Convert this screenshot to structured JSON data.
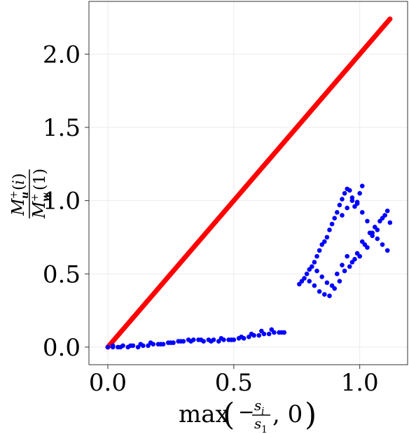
{
  "chart_data": {
    "type": "scatter",
    "title": "",
    "xlabel": "max(−s_i/s_1, 0)",
    "ylabel": "M⁺_u(i) / M⁺_w(1)",
    "xlim": [
      -0.075,
      1.19
    ],
    "ylim": [
      -0.12,
      2.36
    ],
    "grid": true,
    "x_ticks": [
      {
        "value": 0.0,
        "label": "0.0"
      },
      {
        "value": 0.5,
        "label": "0.5"
      },
      {
        "value": 1.0,
        "label": "1.0"
      }
    ],
    "y_ticks": [
      {
        "value": 0.0,
        "label": "0.0"
      },
      {
        "value": 0.5,
        "label": "0.5"
      },
      {
        "value": 1.0,
        "label": "1.0"
      },
      {
        "value": 1.5,
        "label": "1.5"
      },
      {
        "value": 2.0,
        "label": "2.0"
      }
    ],
    "series": [
      {
        "color": "#ff0000",
        "description": "dense points along y = 2x",
        "x": [
          0.0,
          0.05,
          0.1,
          0.15,
          0.2,
          0.25,
          0.3,
          0.35,
          0.4,
          0.45,
          0.5,
          0.55,
          0.6,
          0.65,
          0.7,
          0.75,
          0.8,
          0.85,
          0.9,
          0.95,
          1.0,
          1.05,
          1.1,
          1.12
        ],
        "y": [
          0.0,
          0.1,
          0.2,
          0.3,
          0.4,
          0.5,
          0.6,
          0.7,
          0.8,
          0.9,
          1.0,
          1.1,
          1.2,
          1.3,
          1.4,
          1.5,
          1.6,
          1.7,
          1.8,
          1.9,
          2.0,
          2.1,
          2.2,
          2.24
        ]
      },
      {
        "color": "#0000ff",
        "x": [
          0.0,
          0.02,
          0.04,
          0.06,
          0.08,
          0.1,
          0.12,
          0.14,
          0.16,
          0.18,
          0.2,
          0.22,
          0.24,
          0.26,
          0.28,
          0.3,
          0.32,
          0.34,
          0.36,
          0.38,
          0.4,
          0.42,
          0.44,
          0.46,
          0.48,
          0.5,
          0.52,
          0.54,
          0.56,
          0.58,
          0.6,
          0.62,
          0.64,
          0.66,
          0.68,
          0.7,
          0.02,
          0.05,
          0.09,
          0.13,
          0.17,
          0.21,
          0.25,
          0.29,
          0.33,
          0.37,
          0.41,
          0.45,
          0.49,
          0.53,
          0.57,
          0.61,
          0.65,
          0.69,
          0.76,
          0.77,
          0.78,
          0.79,
          0.8,
          0.81,
          0.82,
          0.83,
          0.84,
          0.85,
          0.86,
          0.87,
          0.88,
          0.89,
          0.9,
          0.91,
          0.92,
          0.93,
          0.94,
          0.95,
          0.96,
          0.97,
          0.98,
          0.99,
          1.0,
          1.01,
          0.8,
          0.82,
          0.84,
          0.86,
          0.88,
          0.9,
          0.92,
          0.94,
          0.96,
          0.98,
          1.0,
          1.02,
          1.04,
          1.06,
          1.08,
          1.1,
          1.12,
          0.83,
          0.85,
          0.87,
          0.89,
          0.91,
          0.93,
          0.95,
          0.97,
          0.99,
          1.01,
          1.03,
          1.05,
          1.07,
          1.09,
          1.11,
          0.93,
          0.95,
          0.97,
          0.99,
          1.01,
          1.03,
          1.05,
          1.07,
          1.09,
          1.11
        ],
        "y": [
          0.0,
          0.0,
          0.0,
          0.01,
          0.0,
          0.01,
          0.0,
          0.01,
          0.01,
          0.02,
          0.02,
          0.02,
          0.03,
          0.03,
          0.04,
          0.04,
          0.05,
          0.05,
          0.05,
          0.04,
          0.05,
          0.05,
          0.04,
          0.05,
          0.05,
          0.05,
          0.06,
          0.06,
          0.07,
          0.08,
          0.08,
          0.09,
          0.09,
          0.1,
          0.1,
          0.1,
          0.01,
          0.0,
          0.01,
          0.02,
          0.03,
          0.02,
          0.03,
          0.04,
          0.04,
          0.05,
          0.04,
          0.06,
          0.05,
          0.07,
          0.09,
          0.11,
          0.12,
          0.1,
          0.43,
          0.45,
          0.47,
          0.5,
          0.53,
          0.55,
          0.58,
          0.62,
          0.66,
          0.7,
          0.72,
          0.75,
          0.8,
          0.84,
          0.88,
          0.92,
          0.97,
          1.01,
          1.05,
          1.08,
          1.07,
          1.0,
          0.96,
          0.99,
          1.05,
          1.1,
          0.45,
          0.42,
          0.38,
          0.36,
          0.35,
          0.4,
          0.45,
          0.52,
          0.55,
          0.6,
          0.62,
          0.7,
          0.78,
          0.82,
          0.86,
          0.9,
          0.85,
          0.52,
          0.48,
          0.44,
          0.42,
          0.5,
          0.56,
          0.62,
          0.58,
          0.64,
          0.72,
          0.68,
          0.76,
          0.8,
          0.88,
          0.93,
          0.9,
          0.95,
          1.02,
          0.98,
          0.92,
          0.86,
          0.78,
          0.74,
          0.7,
          0.66
        ]
      }
    ]
  }
}
